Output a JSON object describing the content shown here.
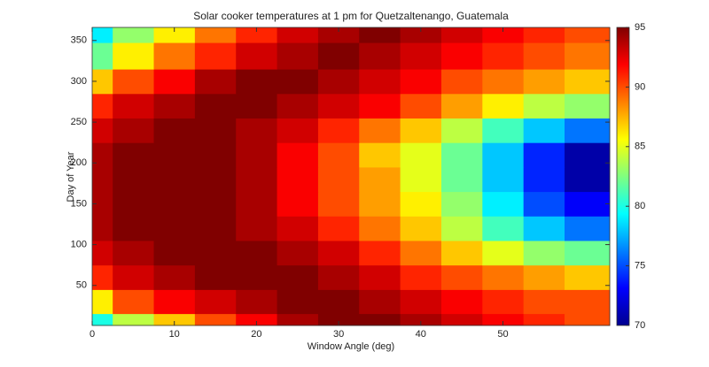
{
  "chart_data": {
    "type": "contour",
    "title": "Solar cooker temperatures at 1 pm for Quetzaltenango, Guatemala",
    "xlabel": "Window Angle (deg)",
    "ylabel": "Day of Year",
    "x": [
      0,
      5,
      10,
      15,
      20,
      25,
      30,
      35,
      40,
      45,
      50,
      55,
      60
    ],
    "y": [
      1,
      30,
      60,
      90,
      120,
      150,
      180,
      210,
      240,
      270,
      300,
      330,
      365
    ],
    "z": [
      [
        80,
        84,
        87,
        90,
        92,
        94,
        95,
        95,
        94,
        93,
        92,
        91,
        90
      ],
      [
        86,
        90,
        92,
        93,
        94,
        95,
        95,
        94,
        93,
        92,
        91,
        90,
        90
      ],
      [
        91,
        93,
        94,
        95,
        95,
        95,
        94,
        93,
        91,
        90,
        89,
        88,
        87
      ],
      [
        93,
        94,
        95,
        95,
        95,
        94,
        93,
        91,
        89,
        87,
        85,
        83,
        82
      ],
      [
        94,
        95,
        95,
        95,
        94,
        93,
        91,
        89,
        87,
        84,
        81,
        78,
        76
      ],
      [
        94,
        95,
        95,
        95,
        94,
        92,
        90,
        88,
        86,
        83,
        79,
        75,
        73
      ],
      [
        94,
        95,
        95,
        95,
        94,
        92,
        90,
        88,
        85,
        82,
        78,
        74,
        71
      ],
      [
        94,
        95,
        95,
        95,
        94,
        92,
        90,
        87,
        85,
        82,
        78,
        74,
        71
      ],
      [
        93,
        94,
        95,
        95,
        94,
        93,
        91,
        89,
        87,
        84,
        81,
        78,
        76
      ],
      [
        91,
        93,
        94,
        95,
        95,
        94,
        93,
        92,
        90,
        88,
        86,
        84,
        83
      ],
      [
        87,
        90,
        92,
        94,
        95,
        95,
        94,
        93,
        92,
        90,
        89,
        88,
        87
      ],
      [
        82,
        86,
        89,
        91,
        93,
        94,
        95,
        94,
        93,
        92,
        91,
        90,
        89
      ],
      [
        79,
        83,
        86,
        89,
        91,
        93,
        94,
        95,
        94,
        93,
        92,
        91,
        90
      ]
    ],
    "xlim": [
      0,
      63
    ],
    "xticks": [
      0,
      10,
      20,
      30,
      40,
      50
    ],
    "ylim": [
      1,
      366
    ],
    "yticks": [
      50,
      100,
      150,
      200,
      250,
      300,
      350
    ],
    "clim": [
      70,
      95
    ],
    "cticks": [
      70,
      75,
      80,
      85,
      90,
      95
    ],
    "colormap": "jet"
  }
}
